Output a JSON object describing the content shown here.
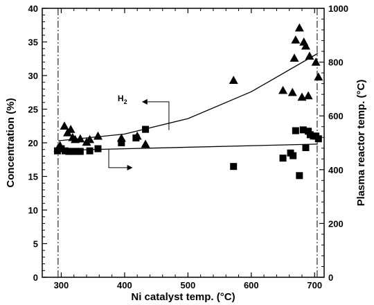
{
  "chart_data": {
    "type": "scatter",
    "title": "",
    "xlabel": "Ni catalyst temp. (°C)",
    "ylabel": "Concentration (%)",
    "y2label": "Plasma reactor temp. (°C)",
    "xlim": [
      270,
      715
    ],
    "ylim": [
      0,
      40
    ],
    "y2lim": [
      0,
      1000
    ],
    "xticks": [
      300,
      400,
      500,
      600,
      700
    ],
    "yticks": [
      0,
      5,
      10,
      15,
      20,
      25,
      30,
      35,
      40
    ],
    "y2ticks": [
      0,
      200,
      400,
      600,
      800,
      1000
    ],
    "grid": false,
    "vlines": [
      295,
      704
    ],
    "series": [
      {
        "name": "H2",
        "marker": "triangle",
        "axis": "left",
        "x": [
          295,
          298,
          305,
          310,
          315,
          318,
          322,
          330,
          340,
          345,
          358,
          395,
          420,
          433,
          572,
          650,
          665,
          668,
          670,
          676,
          680,
          683,
          686,
          690,
          692,
          702,
          706
        ],
        "y": [
          19.2,
          19.6,
          22.5,
          21.5,
          22.0,
          20.8,
          20.5,
          20.6,
          20.1,
          20.5,
          21.0,
          20.7,
          21.0,
          19.8,
          29.3,
          27.8,
          27.5,
          32.6,
          35.3,
          37.1,
          26.8,
          35.0,
          34.4,
          27.0,
          32.9,
          32.0,
          29.8
        ]
      },
      {
        "name": "Plasma reactor temp.",
        "marker": "square",
        "axis": "right",
        "x": [
          294,
          300,
          306,
          312,
          318,
          324,
          330,
          345,
          358,
          395,
          418,
          433,
          572,
          650,
          662,
          666,
          670,
          676,
          682,
          686,
          690,
          693,
          698,
          702,
          706
        ],
        "y": [
          470,
          478,
          470,
          468,
          468,
          468,
          468,
          470,
          478,
          500,
          518,
          550,
          412,
          443,
          462,
          452,
          545,
          378,
          548,
          482,
          543,
          530,
          525,
          525,
          515
        ]
      }
    ],
    "fits": [
      {
        "name": "H2 fit",
        "axis": "left",
        "x": [
          295,
          400,
          500,
          600,
          705
        ],
        "y": [
          20.3,
          21.3,
          23.6,
          27.6,
          33.3
        ]
      },
      {
        "name": "Plasma reactor temp. fit",
        "axis": "right",
        "x": [
          295,
          705
        ],
        "y": [
          472,
          495
        ]
      }
    ],
    "annotations": {
      "h2_label": "H",
      "h2_sub": "2"
    }
  }
}
